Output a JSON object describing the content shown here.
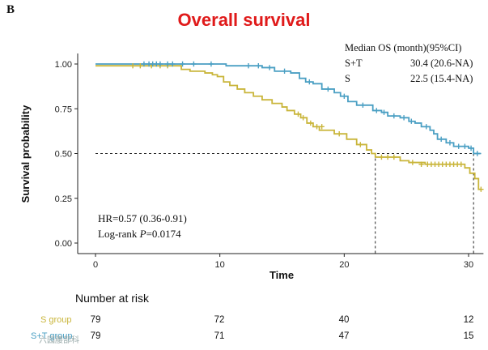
{
  "panel_label": "B",
  "chart_data": {
    "type": "line",
    "step": true,
    "title": "Overall survival",
    "xlabel": "Time",
    "ylabel": "Survival probability",
    "xlim": [
      0,
      31
    ],
    "ylim": [
      0,
      1.05
    ],
    "x_ticks": [
      0,
      10,
      20,
      30
    ],
    "x_tick_labels": [
      "0",
      "10",
      "20",
      "30"
    ],
    "y_ticks": [
      0,
      0.25,
      0.5,
      0.75,
      1.0
    ],
    "y_tick_labels": [
      "0.00",
      "0.25",
      "0.50",
      "0.75",
      "1.00"
    ],
    "median_line": {
      "y": 0.5,
      "x_drops": [
        22.5,
        30.4
      ]
    },
    "series": [
      {
        "name": "S+T",
        "color": "#4a9fc3",
        "steps": [
          [
            0,
            1.0
          ],
          [
            10.5,
            0.99
          ],
          [
            13.4,
            0.98
          ],
          [
            14.4,
            0.96
          ],
          [
            15.7,
            0.95
          ],
          [
            16.4,
            0.92
          ],
          [
            16.9,
            0.9
          ],
          [
            17.5,
            0.89
          ],
          [
            18.2,
            0.86
          ],
          [
            19.2,
            0.84
          ],
          [
            19.7,
            0.82
          ],
          [
            20.3,
            0.79
          ],
          [
            21.0,
            0.77
          ],
          [
            22.3,
            0.74
          ],
          [
            23.0,
            0.73
          ],
          [
            23.5,
            0.71
          ],
          [
            24.5,
            0.7
          ],
          [
            25.2,
            0.68
          ],
          [
            25.7,
            0.67
          ],
          [
            26.2,
            0.65
          ],
          [
            26.9,
            0.63
          ],
          [
            27.2,
            0.61
          ],
          [
            27.5,
            0.58
          ],
          [
            28.2,
            0.56
          ],
          [
            28.8,
            0.54
          ],
          [
            30.0,
            0.53
          ],
          [
            30.4,
            0.5
          ],
          [
            31.0,
            0.5
          ]
        ],
        "censors": [
          [
            3.9,
            1.0
          ],
          [
            4.3,
            1.0
          ],
          [
            4.6,
            1.0
          ],
          [
            4.9,
            1.0
          ],
          [
            5.2,
            1.0
          ],
          [
            5.8,
            1.0
          ],
          [
            6.2,
            1.0
          ],
          [
            7.0,
            1.0
          ],
          [
            7.9,
            1.0
          ],
          [
            9.3,
            1.0
          ],
          [
            12.3,
            0.99
          ],
          [
            13.1,
            0.99
          ],
          [
            14.0,
            0.98
          ],
          [
            15.2,
            0.96
          ],
          [
            17.2,
            0.9
          ],
          [
            18.7,
            0.86
          ],
          [
            20.0,
            0.82
          ],
          [
            21.5,
            0.77
          ],
          [
            22.6,
            0.74
          ],
          [
            23.2,
            0.73
          ],
          [
            24.0,
            0.71
          ],
          [
            24.8,
            0.7
          ],
          [
            25.4,
            0.68
          ],
          [
            26.6,
            0.65
          ],
          [
            27.8,
            0.58
          ],
          [
            28.5,
            0.56
          ],
          [
            29.2,
            0.54
          ],
          [
            29.7,
            0.54
          ],
          [
            30.2,
            0.53
          ],
          [
            30.7,
            0.5
          ]
        ]
      },
      {
        "name": "S",
        "color": "#c9b53a",
        "steps": [
          [
            0,
            0.99
          ],
          [
            6.9,
            0.97
          ],
          [
            7.6,
            0.96
          ],
          [
            8.8,
            0.95
          ],
          [
            9.4,
            0.94
          ],
          [
            9.8,
            0.93
          ],
          [
            10.3,
            0.9
          ],
          [
            10.8,
            0.88
          ],
          [
            11.4,
            0.86
          ],
          [
            12.0,
            0.84
          ],
          [
            12.7,
            0.82
          ],
          [
            13.4,
            0.8
          ],
          [
            14.2,
            0.78
          ],
          [
            15.0,
            0.76
          ],
          [
            15.4,
            0.74
          ],
          [
            16.0,
            0.72
          ],
          [
            16.5,
            0.7
          ],
          [
            17.0,
            0.67
          ],
          [
            17.5,
            0.65
          ],
          [
            18.0,
            0.63
          ],
          [
            19.2,
            0.61
          ],
          [
            20.2,
            0.58
          ],
          [
            21.0,
            0.55
          ],
          [
            21.8,
            0.52
          ],
          [
            22.2,
            0.5
          ],
          [
            22.5,
            0.48
          ],
          [
            24.5,
            0.46
          ],
          [
            25.2,
            0.45
          ],
          [
            26.5,
            0.44
          ],
          [
            29.7,
            0.42
          ],
          [
            30.1,
            0.39
          ],
          [
            30.5,
            0.36
          ],
          [
            30.8,
            0.3
          ],
          [
            31.0,
            0.3
          ]
        ],
        "censors": [
          [
            3.0,
            0.99
          ],
          [
            3.6,
            0.99
          ],
          [
            4.5,
            0.99
          ],
          [
            5.2,
            0.99
          ],
          [
            5.8,
            0.99
          ],
          [
            16.3,
            0.72
          ],
          [
            16.7,
            0.7
          ],
          [
            17.3,
            0.67
          ],
          [
            17.8,
            0.65
          ],
          [
            18.2,
            0.65
          ],
          [
            19.6,
            0.61
          ],
          [
            21.3,
            0.55
          ],
          [
            23.0,
            0.48
          ],
          [
            23.5,
            0.48
          ],
          [
            24.0,
            0.48
          ],
          [
            25.5,
            0.45
          ],
          [
            26.2,
            0.44
          ],
          [
            26.7,
            0.44
          ],
          [
            27.0,
            0.44
          ],
          [
            27.3,
            0.44
          ],
          [
            27.6,
            0.44
          ],
          [
            27.9,
            0.44
          ],
          [
            28.2,
            0.44
          ],
          [
            28.5,
            0.44
          ],
          [
            28.8,
            0.44
          ],
          [
            29.1,
            0.44
          ],
          [
            29.4,
            0.44
          ],
          [
            31.0,
            0.3
          ]
        ]
      }
    ],
    "annotations": {
      "hr": "HR=0.57 (0.36-0.91)",
      "logrank_prefix": "Log-rank ",
      "logrank_p": "P",
      "logrank_value": "=0.0174"
    },
    "median_table": {
      "header": "Median OS (month)(95%CI)",
      "rows": [
        {
          "group": "S+T",
          "value": "30.4 (20.6-NA)"
        },
        {
          "group": "S",
          "value": "22.5 (15.4-NA)"
        }
      ]
    }
  },
  "risk_table": {
    "title": "Number at risk",
    "times": [
      0,
      10,
      20,
      30
    ],
    "rows": [
      {
        "label": "S group",
        "color": "#c9b53a",
        "counts": [
          "79",
          "72",
          "40",
          "12"
        ]
      },
      {
        "label": "S+T group",
        "color": "#4a9fc3",
        "counts": [
          "79",
          "71",
          "47",
          "15"
        ]
      }
    ]
  },
  "watermark": "六园腰部科"
}
